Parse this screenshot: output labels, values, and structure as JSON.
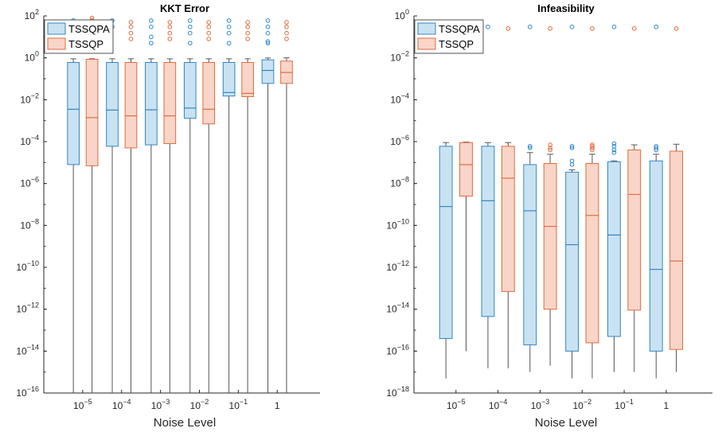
{
  "colors": {
    "TSSQPA": {
      "edge": "#2f86c7",
      "fill": "#c9e2f2"
    },
    "TSSQP": {
      "edge": "#e26a3b",
      "fill": "#f8d5c8"
    },
    "whisker": "#555555",
    "axis": "#262626"
  },
  "chart_data": [
    {
      "type": "box",
      "title": "KKT Error",
      "xlabel": "Noise Level",
      "ylabel": "",
      "yscale": "log",
      "ylim": [
        1e-16,
        100
      ],
      "grid": false,
      "legend_position": "top-left",
      "categories": [
        "10^-5",
        "10^-4",
        "10^-3",
        "10^-2",
        "10^-1",
        "1"
      ],
      "category_labels": [
        {
          "base": "10",
          "exp": "−5"
        },
        {
          "base": "10",
          "exp": "−4"
        },
        {
          "base": "10",
          "exp": "−3"
        },
        {
          "base": "10",
          "exp": "−2"
        },
        {
          "base": "10",
          "exp": "−1"
        },
        {
          "base": "1",
          "exp": ""
        }
      ],
      "y_ticks": [
        {
          "base": "10",
          "exp": "2",
          "v": 2
        },
        {
          "base": "10",
          "exp": "0",
          "v": 0
        },
        {
          "base": "10",
          "exp": "−2",
          "v": -2
        },
        {
          "base": "10",
          "exp": "−4",
          "v": -4
        },
        {
          "base": "10",
          "exp": "−6",
          "v": -6
        },
        {
          "base": "10",
          "exp": "−8",
          "v": -8
        },
        {
          "base": "10",
          "exp": "−10",
          "v": -10
        },
        {
          "base": "10",
          "exp": "−12",
          "v": -12
        },
        {
          "base": "10",
          "exp": "−14",
          "v": -14
        },
        {
          "base": "10",
          "exp": "−16",
          "v": -16
        }
      ],
      "series": [
        {
          "name": "TSSQPA",
          "boxes": [
            {
              "whisker_low": 1e-16,
              "q1": 8e-06,
              "median": 0.0035,
              "q3": 0.6,
              "whisker_high": 0.9,
              "outliers": [
                60
              ]
            },
            {
              "whisker_low": 1e-16,
              "q1": 6e-05,
              "median": 0.0032,
              "q3": 0.6,
              "whisker_high": 0.9,
              "outliers": [
                60,
                30
              ]
            },
            {
              "whisker_low": 1e-16,
              "q1": 7e-05,
              "median": 0.0033,
              "q3": 0.6,
              "whisker_high": 0.9,
              "outliers": [
                60,
                30,
                10,
                5
              ]
            },
            {
              "whisker_low": 1e-16,
              "q1": 0.0013,
              "median": 0.004,
              "q3": 0.6,
              "whisker_high": 0.9,
              "outliers": [
                60,
                30,
                15,
                5
              ]
            },
            {
              "whisker_low": 1e-16,
              "q1": 0.015,
              "median": 0.022,
              "q3": 0.6,
              "whisker_high": 0.9,
              "outliers": [
                60,
                30,
                15,
                5
              ]
            },
            {
              "whisker_low": 1e-16,
              "q1": 0.06,
              "median": 0.25,
              "q3": 0.8,
              "whisker_high": 0.98,
              "outliers": [
                60,
                30,
                15,
                6,
                5
              ]
            }
          ]
        },
        {
          "name": "TSSQP",
          "boxes": [
            {
              "whisker_low": 1e-16,
              "q1": 7e-06,
              "median": 0.0014,
              "q3": 0.85,
              "whisker_high": 0.9,
              "outliers": [
                80,
                60
              ]
            },
            {
              "whisker_low": 1e-16,
              "q1": 5e-05,
              "median": 0.0017,
              "q3": 0.6,
              "whisker_high": 0.9,
              "outliers": [
                50,
                30,
                15,
                8
              ]
            },
            {
              "whisker_low": 1e-16,
              "q1": 8e-05,
              "median": 0.0017,
              "q3": 0.6,
              "whisker_high": 0.9,
              "outliers": [
                50,
                30,
                15,
                8
              ]
            },
            {
              "whisker_low": 1e-16,
              "q1": 0.0007,
              "median": 0.0035,
              "q3": 0.6,
              "whisker_high": 0.9,
              "outliers": [
                50,
                30,
                15,
                8
              ]
            },
            {
              "whisker_low": 1e-16,
              "q1": 0.014,
              "median": 0.02,
              "q3": 0.6,
              "whisker_high": 0.9,
              "outliers": [
                50,
                30,
                15,
                8
              ]
            },
            {
              "whisker_low": 1e-16,
              "q1": 0.06,
              "median": 0.2,
              "q3": 0.7,
              "whisker_high": 1.0,
              "outliers": [
                50,
                30,
                15,
                8
              ]
            }
          ]
        }
      ]
    },
    {
      "type": "box",
      "title": "Infeasibility",
      "xlabel": "Noise Level",
      "ylabel": "",
      "yscale": "log",
      "ylim": [
        1e-18,
        1
      ],
      "grid": false,
      "legend_position": "top-left",
      "categories": [
        "10^-5",
        "10^-4",
        "10^-3",
        "10^-2",
        "10^-1",
        "1"
      ],
      "category_labels": [
        {
          "base": "10",
          "exp": "−5"
        },
        {
          "base": "10",
          "exp": "−4"
        },
        {
          "base": "10",
          "exp": "−3"
        },
        {
          "base": "10",
          "exp": "−2"
        },
        {
          "base": "10",
          "exp": "−1"
        },
        {
          "base": "1",
          "exp": ""
        }
      ],
      "y_ticks": [
        {
          "base": "10",
          "exp": "0",
          "v": 0
        },
        {
          "base": "10",
          "exp": "−2",
          "v": -2
        },
        {
          "base": "10",
          "exp": "−4",
          "v": -4
        },
        {
          "base": "10",
          "exp": "−6",
          "v": -6
        },
        {
          "base": "10",
          "exp": "−8",
          "v": -8
        },
        {
          "base": "10",
          "exp": "−10",
          "v": -10
        },
        {
          "base": "10",
          "exp": "−12",
          "v": -12
        },
        {
          "base": "10",
          "exp": "−14",
          "v": -14
        },
        {
          "base": "10",
          "exp": "−16",
          "v": -16
        },
        {
          "base": "10",
          "exp": "−18",
          "v": -18
        }
      ],
      "series": [
        {
          "name": "TSSQPA",
          "boxes": [
            {
              "whisker_low": 5e-18,
              "q1": 4e-16,
              "median": 8e-10,
              "q3": 6e-07,
              "whisker_high": 9e-07,
              "outliers": [
                0.3
              ]
            },
            {
              "whisker_low": 1.5e-17,
              "q1": 4.5e-15,
              "median": 1.5e-09,
              "q3": 6e-07,
              "whisker_high": 9e-07,
              "outliers": [
                0.3
              ]
            },
            {
              "whisker_low": 1e-17,
              "q1": 2e-16,
              "median": 5e-10,
              "q3": 8e-08,
              "whisker_high": 3e-07,
              "outliers": [
                0.3,
                6e-07,
                5e-07
              ]
            },
            {
              "whisker_low": 5e-18,
              "q1": 1e-16,
              "median": 1.2e-11,
              "q3": 3.5e-08,
              "whisker_high": 4.5e-08,
              "outliers": [
                0.3,
                6e-07,
                5e-07,
                1.2e-07,
                8e-08
              ]
            },
            {
              "whisker_low": 1e-17,
              "q1": 5e-16,
              "median": 3.5e-11,
              "q3": 1.1e-07,
              "whisker_high": 1.2e-07,
              "outliers": [
                0.3,
                8e-07,
                6e-07,
                4e-07,
                3e-07
              ]
            },
            {
              "whisker_low": 5e-18,
              "q1": 1e-16,
              "median": 8e-13,
              "q3": 1.2e-07,
              "whisker_high": 2.5e-07,
              "outliers": [
                0.3,
                6e-07,
                5e-07,
                4e-07
              ]
            }
          ]
        },
        {
          "name": "TSSQP",
          "boxes": [
            {
              "whisker_low": 1e-16,
              "q1": 2.5e-09,
              "median": 8e-08,
              "q3": 9e-07,
              "whisker_high": 9.5e-07,
              "outliers": []
            },
            {
              "whisker_low": 1.5e-17,
              "q1": 7e-14,
              "median": 1.8e-08,
              "q3": 6e-07,
              "whisker_high": 9e-07,
              "outliers": [
                0.25
              ]
            },
            {
              "whisker_low": 2e-17,
              "q1": 1e-14,
              "median": 9e-11,
              "q3": 9e-08,
              "whisker_high": 2.5e-07,
              "outliers": [
                0.25,
                7e-07,
                5e-07,
                4e-07
              ]
            },
            {
              "whisker_low": 5e-18,
              "q1": 2.5e-16,
              "median": 3e-10,
              "q3": 9e-08,
              "whisker_high": 2.5e-07,
              "outliers": [
                0.25,
                7e-07,
                6e-07,
                5e-07,
                4e-07
              ]
            },
            {
              "whisker_low": 1e-17,
              "q1": 9e-15,
              "median": 3e-09,
              "q3": 4e-07,
              "whisker_high": 7e-07,
              "outliers": [
                0.25
              ]
            },
            {
              "whisker_low": 1e-17,
              "q1": 1.2e-16,
              "median": 2e-12,
              "q3": 3.5e-07,
              "whisker_high": 7.5e-07,
              "outliers": [
                0.25
              ]
            }
          ]
        }
      ]
    }
  ]
}
